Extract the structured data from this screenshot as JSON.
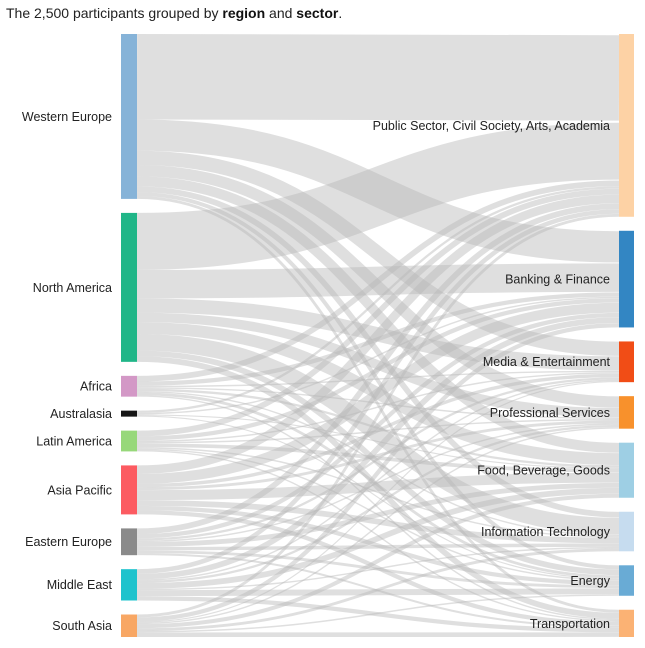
{
  "title": {
    "prefix": "The 2,500 participants grouped by ",
    "bold1": "region",
    "middle": " and ",
    "bold2": "sector",
    "suffix": "."
  },
  "chart_data": {
    "type": "sankey",
    "total": 2500,
    "sources": [
      {
        "name": "Western Europe",
        "value": 579,
        "color": "#86b3d8"
      },
      {
        "name": "North America",
        "value": 523,
        "color": "#20b688"
      },
      {
        "name": "Africa",
        "value": 73,
        "color": "#d398c6"
      },
      {
        "name": "Australasia",
        "value": 21,
        "color": "#151515"
      },
      {
        "name": "Latin America",
        "value": 73,
        "color": "#97d87a"
      },
      {
        "name": "Asia Pacific",
        "value": 172,
        "color": "#fc5b61"
      },
      {
        "name": "Eastern Europe",
        "value": 94,
        "color": "#8a8a8a"
      },
      {
        "name": "Middle East",
        "value": 110,
        "color": "#1ec3cd"
      },
      {
        "name": "South Asia",
        "value": 79,
        "color": "#f8a764"
      }
    ],
    "targets": [
      {
        "name": "Public Sector, Civil Society, Arts, Academia",
        "value": 624,
        "color": "#fdd2a5"
      },
      {
        "name": "Banking & Finance",
        "value": 330,
        "color": "#3386c3"
      },
      {
        "name": "Media & Entertainment",
        "value": 139,
        "color": "#f14d16"
      },
      {
        "name": "Professional Services",
        "value": 111,
        "color": "#f8912c"
      },
      {
        "name": "Food, Beverage, Goods",
        "value": 188,
        "color": "#9ecfe4"
      },
      {
        "name": "Information Technology",
        "value": 135,
        "color": "#c6dcef"
      },
      {
        "name": "Energy",
        "value": 104,
        "color": "#69abd5"
      },
      {
        "name": "Transportation",
        "value": 93,
        "color": "#fbb274"
      }
    ],
    "links": [
      [
        "Western Europe",
        "Public Sector, Civil Society, Arts, Academia",
        300
      ],
      [
        "Western Europe",
        "Banking & Finance",
        110
      ],
      [
        "Western Europe",
        "Media & Entertainment",
        50
      ],
      [
        "Western Europe",
        "Professional Services",
        40
      ],
      [
        "Western Europe",
        "Food, Beverage, Goods",
        35
      ],
      [
        "Western Europe",
        "Information Technology",
        20
      ],
      [
        "Western Europe",
        "Energy",
        14
      ],
      [
        "Western Europe",
        "Transportation",
        10
      ],
      [
        "North America",
        "Public Sector, Civil Society, Arts, Academia",
        200
      ],
      [
        "North America",
        "Banking & Finance",
        100
      ],
      [
        "North America",
        "Media & Entertainment",
        50
      ],
      [
        "North America",
        "Professional Services",
        33
      ],
      [
        "North America",
        "Food, Beverage, Goods",
        42
      ],
      [
        "North America",
        "Information Technology",
        58
      ],
      [
        "North America",
        "Energy",
        20
      ],
      [
        "North America",
        "Transportation",
        20
      ],
      [
        "Africa",
        "Public Sector, Civil Society, Arts, Academia",
        20
      ],
      [
        "Africa",
        "Banking & Finance",
        15
      ],
      [
        "Africa",
        "Media & Entertainment",
        5
      ],
      [
        "Africa",
        "Professional Services",
        5
      ],
      [
        "Africa",
        "Food, Beverage, Goods",
        8
      ],
      [
        "Africa",
        "Information Technology",
        5
      ],
      [
        "Africa",
        "Energy",
        10
      ],
      [
        "Africa",
        "Transportation",
        5
      ],
      [
        "Australasia",
        "Public Sector, Civil Society, Arts, Academia",
        8
      ],
      [
        "Australasia",
        "Banking & Finance",
        5
      ],
      [
        "Australasia",
        "Food, Beverage, Goods",
        4
      ],
      [
        "Australasia",
        "Energy",
        4
      ],
      [
        "Latin America",
        "Public Sector, Civil Society, Arts, Academia",
        20
      ],
      [
        "Latin America",
        "Banking & Finance",
        15
      ],
      [
        "Latin America",
        "Media & Entertainment",
        5
      ],
      [
        "Latin America",
        "Professional Services",
        5
      ],
      [
        "Latin America",
        "Food, Beverage, Goods",
        13
      ],
      [
        "Latin America",
        "Information Technology",
        5
      ],
      [
        "Latin America",
        "Energy",
        5
      ],
      [
        "Latin America",
        "Transportation",
        5
      ],
      [
        "Asia Pacific",
        "Public Sector, Civil Society, Arts, Academia",
        30
      ],
      [
        "Asia Pacific",
        "Banking & Finance",
        35
      ],
      [
        "Asia Pacific",
        "Media & Entertainment",
        12
      ],
      [
        "Asia Pacific",
        "Professional Services",
        10
      ],
      [
        "Asia Pacific",
        "Food, Beverage, Goods",
        35
      ],
      [
        "Asia Pacific",
        "Information Technology",
        20
      ],
      [
        "Asia Pacific",
        "Energy",
        15
      ],
      [
        "Asia Pacific",
        "Transportation",
        15
      ],
      [
        "Eastern Europe",
        "Public Sector, Civil Society, Arts, Academia",
        20
      ],
      [
        "Eastern Europe",
        "Banking & Finance",
        15
      ],
      [
        "Eastern Europe",
        "Media & Entertainment",
        8
      ],
      [
        "Eastern Europe",
        "Professional Services",
        5
      ],
      [
        "Eastern Europe",
        "Food, Beverage, Goods",
        17
      ],
      [
        "Eastern Europe",
        "Information Technology",
        12
      ],
      [
        "Eastern Europe",
        "Energy",
        10
      ],
      [
        "Eastern Europe",
        "Transportation",
        7
      ],
      [
        "Middle East",
        "Public Sector, Civil Society, Arts, Academia",
        16
      ],
      [
        "Middle East",
        "Banking & Finance",
        20
      ],
      [
        "Middle East",
        "Media & Entertainment",
        5
      ],
      [
        "Middle East",
        "Professional Services",
        8
      ],
      [
        "Middle East",
        "Food, Beverage, Goods",
        20
      ],
      [
        "Middle East",
        "Information Technology",
        5
      ],
      [
        "Middle East",
        "Energy",
        21
      ],
      [
        "Middle East",
        "Transportation",
        15
      ],
      [
        "South Asia",
        "Public Sector, Civil Society, Arts, Academia",
        10
      ],
      [
        "South Asia",
        "Banking & Finance",
        15
      ],
      [
        "South Asia",
        "Media & Entertainment",
        4
      ],
      [
        "South Asia",
        "Professional Services",
        5
      ],
      [
        "South Asia",
        "Food, Beverage, Goods",
        14
      ],
      [
        "South Asia",
        "Information Technology",
        10
      ],
      [
        "South Asia",
        "Energy",
        5
      ],
      [
        "South Asia",
        "Transportation",
        16
      ]
    ]
  }
}
